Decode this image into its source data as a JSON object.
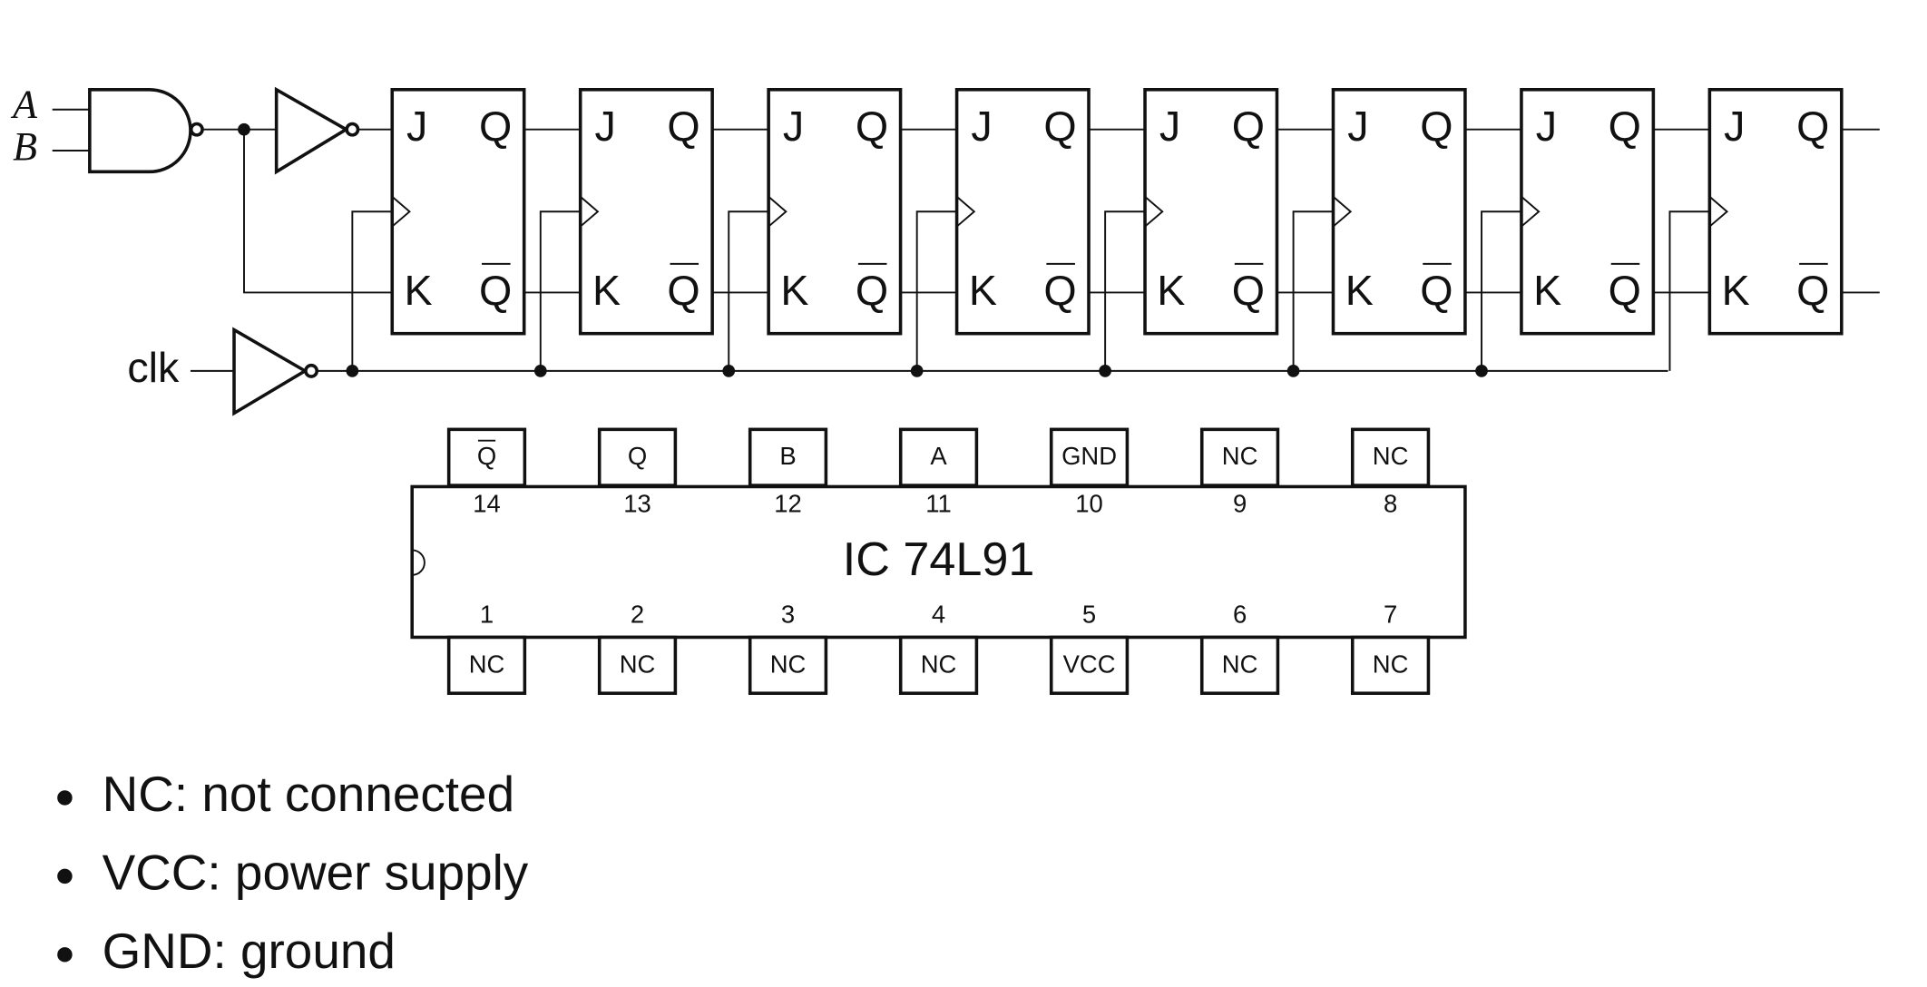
{
  "inputs": {
    "a": "A",
    "b": "B",
    "clock": "clk"
  },
  "flip_flop_count": 8,
  "flip_flop_labels": {
    "j": "J",
    "q": "Q",
    "k": "K",
    "q_bar": "Q"
  },
  "chip": {
    "title": "IC 74L91",
    "top_pins": [
      {
        "label": "Q",
        "number": 14
      },
      {
        "label": "Q",
        "number": 13
      },
      {
        "label": "B",
        "number": 12
      },
      {
        "label": "A",
        "number": 11
      },
      {
        "label": "GND",
        "number": 10
      },
      {
        "label": "NC",
        "number": 9
      },
      {
        "label": "NC",
        "number": 8
      }
    ],
    "bottom_pins": [
      {
        "label": "NC",
        "number": 1
      },
      {
        "label": "NC",
        "number": 2
      },
      {
        "label": "NC",
        "number": 3
      },
      {
        "label": "NC",
        "number": 4
      },
      {
        "label": "VCC",
        "number": 5
      },
      {
        "label": "NC",
        "number": 6
      },
      {
        "label": "NC",
        "number": 7
      }
    ]
  },
  "legend": [
    "NC: not connected",
    "VCC: power supply",
    "GND: ground"
  ]
}
